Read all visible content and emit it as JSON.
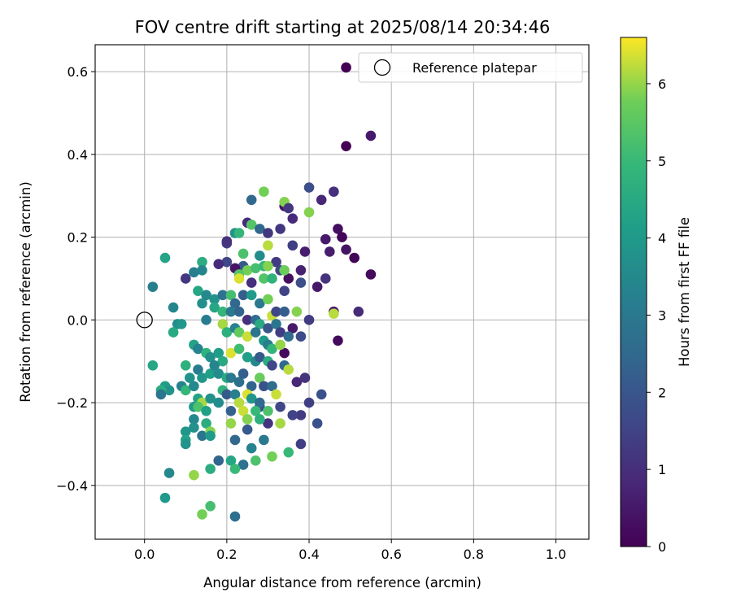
{
  "chart_data": {
    "type": "scatter",
    "title": "FOV centre drift starting at 2025/08/14 20:34:46",
    "xlabel": "Angular distance from reference (arcmin)",
    "ylabel": "Rotation from reference (arcmin)",
    "xlim": [
      -0.12,
      1.08
    ],
    "ylim": [
      -0.53,
      0.665
    ],
    "xticks": [
      0.0,
      0.2,
      0.4,
      0.6,
      0.8,
      1.0
    ],
    "xtick_labels": [
      "0.0",
      "0.2",
      "0.4",
      "0.6",
      "0.8",
      "1.0"
    ],
    "yticks": [
      -0.4,
      -0.2,
      0.0,
      0.2,
      0.4,
      0.6
    ],
    "ytick_labels": [
      "−0.4",
      "−0.2",
      "0.0",
      "0.2",
      "0.4",
      "0.6"
    ],
    "grid": true,
    "legend": {
      "position": "top-right",
      "entries": [
        "Reference platepar"
      ]
    },
    "reference_point": {
      "x": 0.0,
      "y": 0.0,
      "label": "Reference platepar"
    },
    "colorbar": {
      "label": "Hours from first FF file",
      "colormap": "viridis",
      "range": [
        0,
        6.6
      ],
      "ticks": [
        0,
        1,
        2,
        3,
        4,
        5,
        6
      ],
      "tick_labels": [
        "0",
        "1",
        "2",
        "3",
        "4",
        "5",
        "6"
      ]
    },
    "points": [
      {
        "x": 0.49,
        "y": 0.61,
        "c": 0.0
      },
      {
        "x": 0.55,
        "y": 0.445,
        "c": 0.5
      },
      {
        "x": 0.49,
        "y": 0.42,
        "c": 0.0
      },
      {
        "x": 0.4,
        "y": 0.32,
        "c": 1.8
      },
      {
        "x": 0.46,
        "y": 0.31,
        "c": 1.0
      },
      {
        "x": 0.43,
        "y": 0.29,
        "c": 0.8
      },
      {
        "x": 0.34,
        "y": 0.275,
        "c": 0.4
      },
      {
        "x": 0.36,
        "y": 0.245,
        "c": 0.9
      },
      {
        "x": 0.33,
        "y": 0.22,
        "c": 1.2
      },
      {
        "x": 0.47,
        "y": 0.22,
        "c": 0.3
      },
      {
        "x": 0.44,
        "y": 0.195,
        "c": 0.5
      },
      {
        "x": 0.48,
        "y": 0.2,
        "c": 0.1
      },
      {
        "x": 0.49,
        "y": 0.17,
        "c": 0.4
      },
      {
        "x": 0.45,
        "y": 0.165,
        "c": 0.6
      },
      {
        "x": 0.51,
        "y": 0.15,
        "c": 0.1
      },
      {
        "x": 0.55,
        "y": 0.11,
        "c": 0.2
      },
      {
        "x": 0.39,
        "y": 0.165,
        "c": 0.6
      },
      {
        "x": 0.36,
        "y": 0.18,
        "c": 1.4
      },
      {
        "x": 0.42,
        "y": 0.08,
        "c": 0.5
      },
      {
        "x": 0.44,
        "y": 0.1,
        "c": 1.1
      },
      {
        "x": 0.38,
        "y": 0.12,
        "c": 0.7
      },
      {
        "x": 0.35,
        "y": 0.1,
        "c": 0.3
      },
      {
        "x": 0.38,
        "y": 0.09,
        "c": 1.8
      },
      {
        "x": 0.34,
        "y": 0.07,
        "c": 1.5
      },
      {
        "x": 0.46,
        "y": 0.02,
        "c": 0.4
      },
      {
        "x": 0.52,
        "y": 0.02,
        "c": 0.9
      },
      {
        "x": 0.47,
        "y": -0.05,
        "c": 0.2
      },
      {
        "x": 0.4,
        "y": 0.0,
        "c": 1.3
      },
      {
        "x": 0.36,
        "y": -0.02,
        "c": 0.5
      },
      {
        "x": 0.38,
        "y": -0.04,
        "c": 1.7
      },
      {
        "x": 0.34,
        "y": -0.08,
        "c": 0.2
      },
      {
        "x": 0.37,
        "y": -0.15,
        "c": 0.8
      },
      {
        "x": 0.39,
        "y": -0.14,
        "c": 1.1
      },
      {
        "x": 0.4,
        "y": -0.2,
        "c": 1.4
      },
      {
        "x": 0.43,
        "y": -0.18,
        "c": 1.9
      },
      {
        "x": 0.42,
        "y": -0.25,
        "c": 1.9
      },
      {
        "x": 0.38,
        "y": -0.23,
        "c": 1.3
      },
      {
        "x": 0.36,
        "y": -0.23,
        "c": 1.5
      },
      {
        "x": 0.38,
        "y": -0.3,
        "c": 1.4
      },
      {
        "x": 0.33,
        "y": -0.21,
        "c": 1.6
      },
      {
        "x": 0.3,
        "y": -0.25,
        "c": 1.1
      },
      {
        "x": 0.28,
        "y": -0.21,
        "c": 1.7
      },
      {
        "x": 0.25,
        "y": -0.265,
        "c": 2.1
      },
      {
        "x": 0.26,
        "y": -0.31,
        "c": 3.3
      },
      {
        "x": 0.29,
        "y": -0.29,
        "c": 3.0
      },
      {
        "x": 0.22,
        "y": -0.29,
        "c": 2.5
      },
      {
        "x": 0.24,
        "y": -0.35,
        "c": 2.8
      },
      {
        "x": 0.22,
        "y": -0.475,
        "c": 2.7
      },
      {
        "x": 0.14,
        "y": -0.28,
        "c": 2.9
      },
      {
        "x": 0.18,
        "y": -0.34,
        "c": 2.4
      },
      {
        "x": 0.26,
        "y": 0.29,
        "c": 2.5
      },
      {
        "x": 0.29,
        "y": 0.31,
        "c": 5.8
      },
      {
        "x": 0.34,
        "y": 0.285,
        "c": 5.9
      },
      {
        "x": 0.35,
        "y": 0.27,
        "c": 1.2
      },
      {
        "x": 0.4,
        "y": 0.26,
        "c": 5.9
      },
      {
        "x": 0.25,
        "y": 0.235,
        "c": 0.9
      },
      {
        "x": 0.26,
        "y": 0.23,
        "c": 5.4
      },
      {
        "x": 0.28,
        "y": 0.22,
        "c": 2.5
      },
      {
        "x": 0.3,
        "y": 0.21,
        "c": 1.2
      },
      {
        "x": 0.22,
        "y": 0.21,
        "c": 3.8
      },
      {
        "x": 0.23,
        "y": 0.21,
        "c": 4.9
      },
      {
        "x": 0.2,
        "y": 0.185,
        "c": 1.4
      },
      {
        "x": 0.2,
        "y": 0.19,
        "c": 1.1
      },
      {
        "x": 0.3,
        "y": 0.18,
        "c": 6.2
      },
      {
        "x": 0.24,
        "y": 0.16,
        "c": 5.3
      },
      {
        "x": 0.28,
        "y": 0.155,
        "c": 3.6
      },
      {
        "x": 0.32,
        "y": 0.14,
        "c": 1.3
      },
      {
        "x": 0.24,
        "y": 0.13,
        "c": 2.1
      },
      {
        "x": 0.22,
        "y": 0.125,
        "c": 0.4
      },
      {
        "x": 0.25,
        "y": 0.12,
        "c": 5.8
      },
      {
        "x": 0.27,
        "y": 0.125,
        "c": 5.2
      },
      {
        "x": 0.29,
        "y": 0.13,
        "c": 5.0
      },
      {
        "x": 0.3,
        "y": 0.13,
        "c": 5.9
      },
      {
        "x": 0.33,
        "y": 0.12,
        "c": 1.6
      },
      {
        "x": 0.34,
        "y": 0.12,
        "c": 5.7
      },
      {
        "x": 0.23,
        "y": 0.11,
        "c": 5.4
      },
      {
        "x": 0.23,
        "y": 0.1,
        "c": 6.4
      },
      {
        "x": 0.26,
        "y": 0.09,
        "c": 1.0
      },
      {
        "x": 0.29,
        "y": 0.1,
        "c": 5.4
      },
      {
        "x": 0.31,
        "y": 0.1,
        "c": 4.8
      },
      {
        "x": 0.2,
        "y": 0.14,
        "c": 1.6
      },
      {
        "x": 0.18,
        "y": 0.135,
        "c": 0.9
      },
      {
        "x": 0.14,
        "y": 0.14,
        "c": 4.6
      },
      {
        "x": 0.14,
        "y": 0.12,
        "c": 3.4
      },
      {
        "x": 0.12,
        "y": 0.115,
        "c": 3.2
      },
      {
        "x": 0.1,
        "y": 0.1,
        "c": 1.2
      },
      {
        "x": 0.05,
        "y": 0.15,
        "c": 4.3
      },
      {
        "x": 0.02,
        "y": 0.08,
        "c": 3.2
      },
      {
        "x": 0.13,
        "y": 0.07,
        "c": 4.4
      },
      {
        "x": 0.15,
        "y": 0.06,
        "c": 3.5
      },
      {
        "x": 0.17,
        "y": 0.05,
        "c": 3.8
      },
      {
        "x": 0.19,
        "y": 0.06,
        "c": 2.8
      },
      {
        "x": 0.21,
        "y": 0.06,
        "c": 5.2
      },
      {
        "x": 0.22,
        "y": 0.04,
        "c": 2.5
      },
      {
        "x": 0.24,
        "y": 0.06,
        "c": 2.2
      },
      {
        "x": 0.26,
        "y": 0.06,
        "c": 4.0
      },
      {
        "x": 0.28,
        "y": 0.04,
        "c": 3.0
      },
      {
        "x": 0.3,
        "y": 0.05,
        "c": 5.8
      },
      {
        "x": 0.31,
        "y": 0.01,
        "c": 6.3
      },
      {
        "x": 0.32,
        "y": 0.02,
        "c": 1.6
      },
      {
        "x": 0.34,
        "y": 0.02,
        "c": 2.2
      },
      {
        "x": 0.37,
        "y": 0.02,
        "c": 5.9
      },
      {
        "x": 0.46,
        "y": 0.015,
        "c": 6.2
      },
      {
        "x": 0.14,
        "y": 0.04,
        "c": 3.7
      },
      {
        "x": 0.17,
        "y": 0.03,
        "c": 4.4
      },
      {
        "x": 0.19,
        "y": 0.02,
        "c": 4.9
      },
      {
        "x": 0.21,
        "y": 0.02,
        "c": 3.0
      },
      {
        "x": 0.23,
        "y": 0.02,
        "c": 2.4
      },
      {
        "x": 0.25,
        "y": 0.0,
        "c": 1.0
      },
      {
        "x": 0.27,
        "y": 0.0,
        "c": 2.6
      },
      {
        "x": 0.28,
        "y": -0.01,
        "c": 4.5
      },
      {
        "x": 0.3,
        "y": -0.02,
        "c": 2.0
      },
      {
        "x": 0.32,
        "y": -0.01,
        "c": 2.9
      },
      {
        "x": 0.33,
        "y": -0.03,
        "c": 1.4
      },
      {
        "x": 0.35,
        "y": -0.04,
        "c": 2.6
      },
      {
        "x": 0.07,
        "y": 0.03,
        "c": 3.4
      },
      {
        "x": 0.08,
        "y": -0.01,
        "c": 3.6
      },
      {
        "x": 0.09,
        "y": -0.01,
        "c": 3.9
      },
      {
        "x": 0.07,
        "y": -0.03,
        "c": 4.5
      },
      {
        "x": 0.15,
        "y": 0.0,
        "c": 3.1
      },
      {
        "x": 0.19,
        "y": -0.01,
        "c": 6.1
      },
      {
        "x": 0.2,
        "y": -0.03,
        "c": 4.7
      },
      {
        "x": 0.22,
        "y": -0.02,
        "c": 3.3
      },
      {
        "x": 0.23,
        "y": -0.03,
        "c": 5.6
      },
      {
        "x": 0.25,
        "y": -0.04,
        "c": 6.3
      },
      {
        "x": 0.27,
        "y": -0.03,
        "c": 2.9
      },
      {
        "x": 0.29,
        "y": -0.05,
        "c": 4.0
      },
      {
        "x": 0.3,
        "y": -0.06,
        "c": 3.2
      },
      {
        "x": 0.31,
        "y": -0.07,
        "c": 4.9
      },
      {
        "x": 0.33,
        "y": -0.06,
        "c": 6.0
      },
      {
        "x": 0.12,
        "y": -0.06,
        "c": 4.3
      },
      {
        "x": 0.13,
        "y": -0.07,
        "c": 3.3
      },
      {
        "x": 0.15,
        "y": -0.08,
        "c": 4.8
      },
      {
        "x": 0.16,
        "y": -0.09,
        "c": 3.7
      },
      {
        "x": 0.18,
        "y": -0.08,
        "c": 4.1
      },
      {
        "x": 0.19,
        "y": -0.1,
        "c": 4.5
      },
      {
        "x": 0.21,
        "y": -0.08,
        "c": 6.4
      },
      {
        "x": 0.23,
        "y": -0.07,
        "c": 5.1
      },
      {
        "x": 0.25,
        "y": -0.09,
        "c": 4.2
      },
      {
        "x": 0.27,
        "y": -0.1,
        "c": 3.5
      },
      {
        "x": 0.28,
        "y": -0.09,
        "c": 2.1
      },
      {
        "x": 0.3,
        "y": -0.1,
        "c": 4.6
      },
      {
        "x": 0.31,
        "y": -0.11,
        "c": 1.6
      },
      {
        "x": 0.34,
        "y": -0.11,
        "c": 2.5
      },
      {
        "x": 0.35,
        "y": -0.12,
        "c": 6.2
      },
      {
        "x": 0.02,
        "y": -0.11,
        "c": 4.4
      },
      {
        "x": 0.1,
        "y": -0.11,
        "c": 4.7
      },
      {
        "x": 0.11,
        "y": -0.14,
        "c": 3.8
      },
      {
        "x": 0.13,
        "y": -0.12,
        "c": 3.1
      },
      {
        "x": 0.14,
        "y": -0.14,
        "c": 3.9
      },
      {
        "x": 0.16,
        "y": -0.13,
        "c": 4.2
      },
      {
        "x": 0.17,
        "y": -0.11,
        "c": 3.4
      },
      {
        "x": 0.18,
        "y": -0.13,
        "c": 3.6
      },
      {
        "x": 0.2,
        "y": -0.14,
        "c": 4.5
      },
      {
        "x": 0.21,
        "y": -0.14,
        "c": 3.0
      },
      {
        "x": 0.23,
        "y": -0.15,
        "c": 2.7
      },
      {
        "x": 0.24,
        "y": -0.13,
        "c": 2.2
      },
      {
        "x": 0.26,
        "y": -0.16,
        "c": 2.4
      },
      {
        "x": 0.28,
        "y": -0.14,
        "c": 5.7
      },
      {
        "x": 0.29,
        "y": -0.16,
        "c": 1.9
      },
      {
        "x": 0.31,
        "y": -0.16,
        "c": 2.6
      },
      {
        "x": 0.32,
        "y": -0.18,
        "c": 6.3
      },
      {
        "x": 0.05,
        "y": -0.16,
        "c": 4.1
      },
      {
        "x": 0.06,
        "y": -0.17,
        "c": 3.8
      },
      {
        "x": 0.04,
        "y": -0.17,
        "c": 4.6
      },
      {
        "x": 0.04,
        "y": -0.18,
        "c": 2.9
      },
      {
        "x": 0.09,
        "y": -0.16,
        "c": 3.3
      },
      {
        "x": 0.1,
        "y": -0.17,
        "c": 4.9
      },
      {
        "x": 0.12,
        "y": -0.16,
        "c": 3.5
      },
      {
        "x": 0.13,
        "y": -0.19,
        "c": 4.3
      },
      {
        "x": 0.14,
        "y": -0.2,
        "c": 6.1
      },
      {
        "x": 0.16,
        "y": -0.19,
        "c": 3.7
      },
      {
        "x": 0.19,
        "y": -0.17,
        "c": 4.8
      },
      {
        "x": 0.2,
        "y": -0.18,
        "c": 2.1
      },
      {
        "x": 0.22,
        "y": -0.18,
        "c": 3.2
      },
      {
        "x": 0.23,
        "y": -0.2,
        "c": 6.2
      },
      {
        "x": 0.25,
        "y": -0.18,
        "c": 6.4
      },
      {
        "x": 0.26,
        "y": -0.19,
        "c": 3.9
      },
      {
        "x": 0.28,
        "y": -0.2,
        "c": 2.6
      },
      {
        "x": 0.12,
        "y": -0.21,
        "c": 4.0
      },
      {
        "x": 0.13,
        "y": -0.21,
        "c": 5.3
      },
      {
        "x": 0.15,
        "y": -0.22,
        "c": 4.2
      },
      {
        "x": 0.18,
        "y": -0.2,
        "c": 3.6
      },
      {
        "x": 0.21,
        "y": -0.22,
        "c": 2.3
      },
      {
        "x": 0.24,
        "y": -0.22,
        "c": 6.3
      },
      {
        "x": 0.27,
        "y": -0.22,
        "c": 5.0
      },
      {
        "x": 0.3,
        "y": -0.22,
        "c": 5.3
      },
      {
        "x": 0.12,
        "y": -0.24,
        "c": 3.5
      },
      {
        "x": 0.15,
        "y": -0.25,
        "c": 4.6
      },
      {
        "x": 0.21,
        "y": -0.25,
        "c": 6.0
      },
      {
        "x": 0.25,
        "y": -0.24,
        "c": 5.9
      },
      {
        "x": 0.28,
        "y": -0.24,
        "c": 4.7
      },
      {
        "x": 0.33,
        "y": -0.25,
        "c": 6.1
      },
      {
        "x": 0.1,
        "y": -0.27,
        "c": 3.9
      },
      {
        "x": 0.12,
        "y": -0.26,
        "c": 3.7
      },
      {
        "x": 0.16,
        "y": -0.27,
        "c": 5.9
      },
      {
        "x": 0.16,
        "y": -0.28,
        "c": 4.0
      },
      {
        "x": 0.1,
        "y": -0.29,
        "c": 4.3
      },
      {
        "x": 0.1,
        "y": -0.3,
        "c": 3.8
      },
      {
        "x": 0.31,
        "y": -0.33,
        "c": 5.8
      },
      {
        "x": 0.35,
        "y": -0.32,
        "c": 5.0
      },
      {
        "x": 0.27,
        "y": -0.34,
        "c": 5.3
      },
      {
        "x": 0.21,
        "y": -0.34,
        "c": 4.4
      },
      {
        "x": 0.22,
        "y": -0.36,
        "c": 5.0
      },
      {
        "x": 0.16,
        "y": -0.36,
        "c": 4.6
      },
      {
        "x": 0.12,
        "y": -0.375,
        "c": 6.0
      },
      {
        "x": 0.06,
        "y": -0.37,
        "c": 3.5
      },
      {
        "x": 0.05,
        "y": -0.43,
        "c": 4.0
      },
      {
        "x": 0.16,
        "y": -0.45,
        "c": 5.2
      },
      {
        "x": 0.14,
        "y": -0.47,
        "c": 5.8
      }
    ]
  }
}
